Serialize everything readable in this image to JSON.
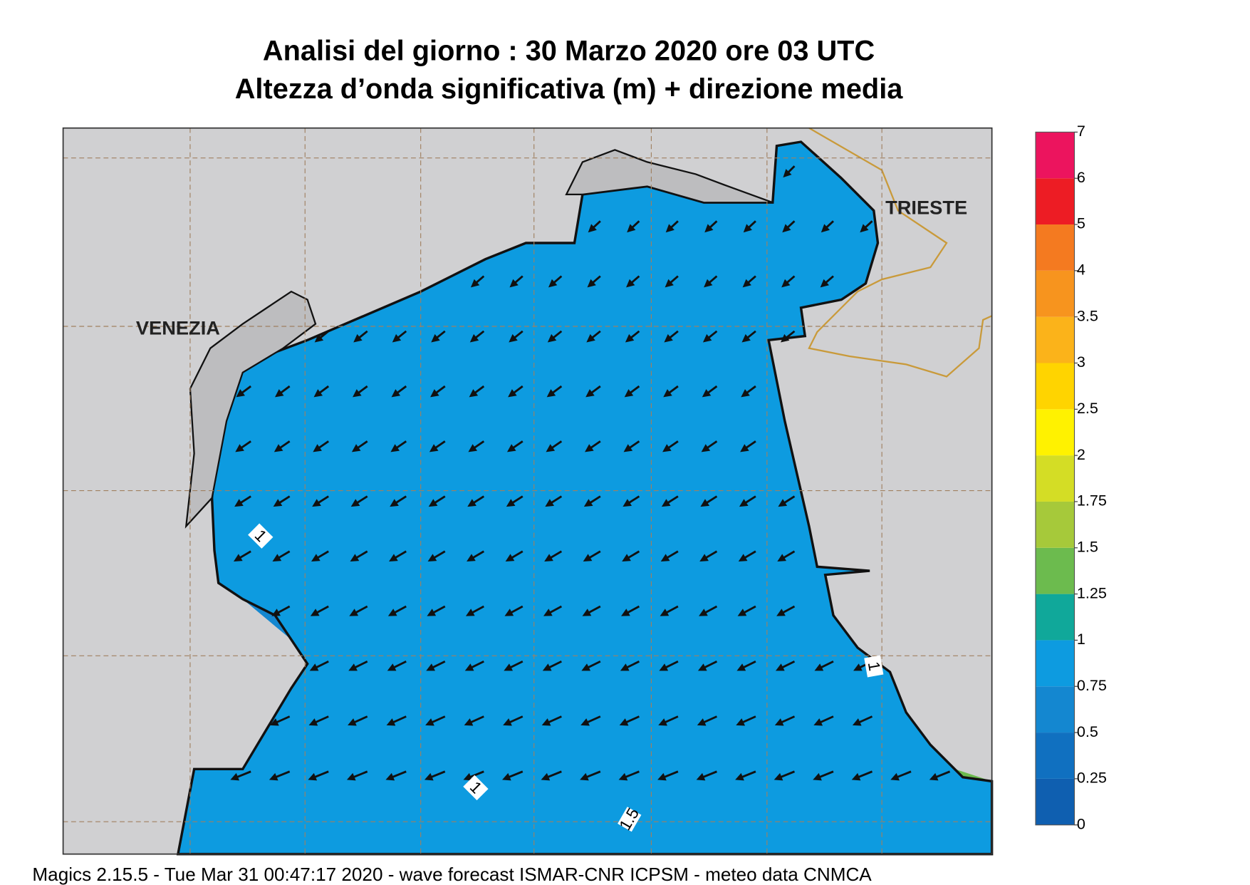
{
  "title": {
    "line1": "Analisi del giorno :  30   Marzo   2020   ore 03 UTC",
    "line2": "Altezza d’onda significativa (m) + direzione media"
  },
  "map": {
    "places": [
      "VENEZIA",
      "TRIESTE"
    ],
    "contour_labels": [
      "1",
      "1",
      "1.5",
      "1"
    ]
  },
  "colorbar": {
    "levels": [
      0,
      0.25,
      0.5,
      0.75,
      1,
      1.25,
      1.5,
      1.75,
      2,
      2.5,
      3,
      3.5,
      4,
      5,
      6,
      7
    ],
    "colors": [
      "#0f5fb0",
      "#1070c0",
      "#1487d0",
      "#0d9be0",
      "#10a89a",
      "#6cbb4e",
      "#a6c93a",
      "#d4dd25",
      "#fff200",
      "#ffd400",
      "#fbb31a",
      "#f7941e",
      "#f47a20",
      "#ed1c24",
      "#ec145e"
    ]
  },
  "footer": "Magics 2.15.5 - Tue Mar 31 00:47:17 2020 - wave forecast  ISMAR-CNR  ICPSM - meteo data   CNMCA"
}
